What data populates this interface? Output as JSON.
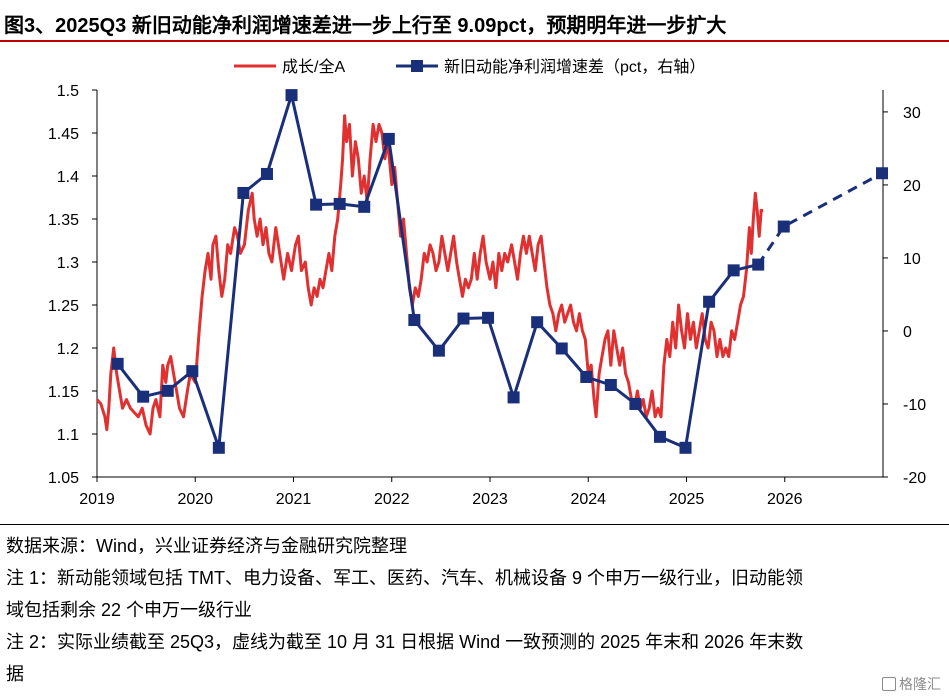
{
  "header": {
    "title": "图3、2025Q3 新旧动能净利润增速差进一步上行至 9.09pct，预期明年进一步扩大",
    "rule_color": "#c00000"
  },
  "chart_data": {
    "type": "line",
    "legend_position": "top-center",
    "grid": false,
    "x_ticks": [
      "2019",
      "2020",
      "2021",
      "2022",
      "2023",
      "2024",
      "2025",
      "2026"
    ],
    "left_axis": {
      "ylim": [
        1.05,
        1.5
      ],
      "ticks": [
        "1.5",
        "1.45",
        "1.4",
        "1.35",
        "1.3",
        "1.25",
        "1.2",
        "1.15",
        "1.1",
        "1.05"
      ]
    },
    "right_axis": {
      "ylim": [
        -20,
        33
      ],
      "ticks": [
        "30",
        "20",
        "10",
        "0",
        "-10",
        "-20"
      ]
    },
    "series": [
      {
        "name": "成长/全A",
        "axis": "left",
        "color": "#e03030",
        "style": "line",
        "points": [
          [
            2019.0,
            1.14
          ],
          [
            2019.04,
            1.135
          ],
          [
            2019.08,
            1.12
          ],
          [
            2019.1,
            1.105
          ],
          [
            2019.12,
            1.13
          ],
          [
            2019.14,
            1.17
          ],
          [
            2019.17,
            1.2
          ],
          [
            2019.2,
            1.17
          ],
          [
            2019.23,
            1.15
          ],
          [
            2019.26,
            1.13
          ],
          [
            2019.3,
            1.14
          ],
          [
            2019.34,
            1.13
          ],
          [
            2019.38,
            1.125
          ],
          [
            2019.42,
            1.12
          ],
          [
            2019.46,
            1.13
          ],
          [
            2019.5,
            1.11
          ],
          [
            2019.54,
            1.1
          ],
          [
            2019.57,
            1.13
          ],
          [
            2019.6,
            1.14
          ],
          [
            2019.64,
            1.12
          ],
          [
            2019.67,
            1.18
          ],
          [
            2019.7,
            1.16
          ],
          [
            2019.72,
            1.18
          ],
          [
            2019.75,
            1.19
          ],
          [
            2019.78,
            1.17
          ],
          [
            2019.81,
            1.15
          ],
          [
            2019.84,
            1.13
          ],
          [
            2019.88,
            1.12
          ],
          [
            2019.92,
            1.15
          ],
          [
            2019.95,
            1.17
          ],
          [
            2020.0,
            1.16
          ],
          [
            2020.04,
            1.22
          ],
          [
            2020.07,
            1.26
          ],
          [
            2020.1,
            1.29
          ],
          [
            2020.13,
            1.31
          ],
          [
            2020.16,
            1.28
          ],
          [
            2020.18,
            1.32
          ],
          [
            2020.21,
            1.33
          ],
          [
            2020.24,
            1.29
          ],
          [
            2020.27,
            1.26
          ],
          [
            2020.3,
            1.28
          ],
          [
            2020.33,
            1.32
          ],
          [
            2020.36,
            1.31
          ],
          [
            2020.4,
            1.34
          ],
          [
            2020.43,
            1.33
          ],
          [
            2020.46,
            1.31
          ],
          [
            2020.5,
            1.32
          ],
          [
            2020.54,
            1.36
          ],
          [
            2020.58,
            1.38
          ],
          [
            2020.6,
            1.35
          ],
          [
            2020.63,
            1.33
          ],
          [
            2020.66,
            1.35
          ],
          [
            2020.69,
            1.32
          ],
          [
            2020.72,
            1.34
          ],
          [
            2020.75,
            1.31
          ],
          [
            2020.78,
            1.3
          ],
          [
            2020.82,
            1.34
          ],
          [
            2020.86,
            1.31
          ],
          [
            2020.9,
            1.28
          ],
          [
            2020.94,
            1.31
          ],
          [
            2020.98,
            1.29
          ],
          [
            2021.02,
            1.32
          ],
          [
            2021.05,
            1.33
          ],
          [
            2021.08,
            1.29
          ],
          [
            2021.12,
            1.3
          ],
          [
            2021.15,
            1.27
          ],
          [
            2021.18,
            1.25
          ],
          [
            2021.21,
            1.27
          ],
          [
            2021.24,
            1.26
          ],
          [
            2021.27,
            1.28
          ],
          [
            2021.3,
            1.27
          ],
          [
            2021.33,
            1.29
          ],
          [
            2021.36,
            1.31
          ],
          [
            2021.39,
            1.29
          ],
          [
            2021.42,
            1.33
          ],
          [
            2021.45,
            1.35
          ],
          [
            2021.48,
            1.39
          ],
          [
            2021.5,
            1.42
          ],
          [
            2021.52,
            1.47
          ],
          [
            2021.54,
            1.44
          ],
          [
            2021.57,
            1.46
          ],
          [
            2021.6,
            1.4
          ],
          [
            2021.63,
            1.44
          ],
          [
            2021.66,
            1.42
          ],
          [
            2021.69,
            1.38
          ],
          [
            2021.72,
            1.4
          ],
          [
            2021.75,
            1.37
          ],
          [
            2021.78,
            1.42
          ],
          [
            2021.81,
            1.46
          ],
          [
            2021.84,
            1.44
          ],
          [
            2021.87,
            1.46
          ],
          [
            2021.9,
            1.45
          ],
          [
            2021.93,
            1.42
          ],
          [
            2021.96,
            1.44
          ],
          [
            2022.0,
            1.39
          ],
          [
            2022.03,
            1.41
          ],
          [
            2022.06,
            1.37
          ],
          [
            2022.09,
            1.33
          ],
          [
            2022.12,
            1.35
          ],
          [
            2022.15,
            1.31
          ],
          [
            2022.18,
            1.27
          ],
          [
            2022.21,
            1.25
          ],
          [
            2022.24,
            1.27
          ],
          [
            2022.27,
            1.26
          ],
          [
            2022.3,
            1.28
          ],
          [
            2022.33,
            1.31
          ],
          [
            2022.36,
            1.3
          ],
          [
            2022.39,
            1.32
          ],
          [
            2022.42,
            1.31
          ],
          [
            2022.45,
            1.29
          ],
          [
            2022.48,
            1.3
          ],
          [
            2022.51,
            1.33
          ],
          [
            2022.54,
            1.31
          ],
          [
            2022.57,
            1.29
          ],
          [
            2022.6,
            1.31
          ],
          [
            2022.63,
            1.33
          ],
          [
            2022.66,
            1.3
          ],
          [
            2022.69,
            1.28
          ],
          [
            2022.72,
            1.26
          ],
          [
            2022.75,
            1.28
          ],
          [
            2022.78,
            1.27
          ],
          [
            2022.81,
            1.28
          ],
          [
            2022.84,
            1.31
          ],
          [
            2022.87,
            1.28
          ],
          [
            2022.9,
            1.31
          ],
          [
            2022.93,
            1.33
          ],
          [
            2022.96,
            1.3
          ],
          [
            2023.0,
            1.28
          ],
          [
            2023.03,
            1.3
          ],
          [
            2023.06,
            1.27
          ],
          [
            2023.09,
            1.31
          ],
          [
            2023.12,
            1.29
          ],
          [
            2023.15,
            1.31
          ],
          [
            2023.18,
            1.3
          ],
          [
            2023.22,
            1.32
          ],
          [
            2023.25,
            1.3
          ],
          [
            2023.28,
            1.28
          ],
          [
            2023.31,
            1.31
          ],
          [
            2023.34,
            1.33
          ],
          [
            2023.37,
            1.31
          ],
          [
            2023.4,
            1.33
          ],
          [
            2023.43,
            1.31
          ],
          [
            2023.46,
            1.29
          ],
          [
            2023.49,
            1.32
          ],
          [
            2023.52,
            1.33
          ],
          [
            2023.55,
            1.3
          ],
          [
            2023.58,
            1.27
          ],
          [
            2023.61,
            1.25
          ],
          [
            2023.64,
            1.24
          ],
          [
            2023.67,
            1.22
          ],
          [
            2023.7,
            1.24
          ],
          [
            2023.73,
            1.25
          ],
          [
            2023.76,
            1.23
          ],
          [
            2023.79,
            1.24
          ],
          [
            2023.82,
            1.25
          ],
          [
            2023.85,
            1.23
          ],
          [
            2023.88,
            1.22
          ],
          [
            2023.91,
            1.24
          ],
          [
            2023.94,
            1.22
          ],
          [
            2023.97,
            1.21
          ],
          [
            2024.0,
            1.17
          ],
          [
            2024.03,
            1.18
          ],
          [
            2024.06,
            1.14
          ],
          [
            2024.08,
            1.12
          ],
          [
            2024.11,
            1.17
          ],
          [
            2024.14,
            1.19
          ],
          [
            2024.17,
            1.21
          ],
          [
            2024.2,
            1.22
          ],
          [
            2024.23,
            1.18
          ],
          [
            2024.26,
            1.22
          ],
          [
            2024.29,
            1.2
          ],
          [
            2024.32,
            1.18
          ],
          [
            2024.35,
            1.2
          ],
          [
            2024.38,
            1.17
          ],
          [
            2024.41,
            1.16
          ],
          [
            2024.44,
            1.14
          ],
          [
            2024.47,
            1.13
          ],
          [
            2024.5,
            1.15
          ],
          [
            2024.53,
            1.13
          ],
          [
            2024.56,
            1.14
          ],
          [
            2024.59,
            1.12
          ],
          [
            2024.62,
            1.13
          ],
          [
            2024.65,
            1.15
          ],
          [
            2024.68,
            1.12
          ],
          [
            2024.71,
            1.13
          ],
          [
            2024.74,
            1.12
          ],
          [
            2024.77,
            1.18
          ],
          [
            2024.8,
            1.21
          ],
          [
            2024.83,
            1.19
          ],
          [
            2024.86,
            1.23
          ],
          [
            2024.89,
            1.2
          ],
          [
            2024.92,
            1.25
          ],
          [
            2024.95,
            1.22
          ],
          [
            2024.98,
            1.2
          ],
          [
            2025.01,
            1.24
          ],
          [
            2025.04,
            1.21
          ],
          [
            2025.07,
            1.23
          ],
          [
            2025.1,
            1.2
          ],
          [
            2025.13,
            1.22
          ],
          [
            2025.16,
            1.24
          ],
          [
            2025.19,
            1.21
          ],
          [
            2025.22,
            1.2
          ],
          [
            2025.25,
            1.23
          ],
          [
            2025.28,
            1.22
          ],
          [
            2025.31,
            1.19
          ],
          [
            2025.34,
            1.21
          ],
          [
            2025.37,
            1.19
          ],
          [
            2025.4,
            1.2
          ],
          [
            2025.43,
            1.19
          ],
          [
            2025.46,
            1.22
          ],
          [
            2025.49,
            1.21
          ],
          [
            2025.52,
            1.23
          ],
          [
            2025.55,
            1.25
          ],
          [
            2025.58,
            1.26
          ],
          [
            2025.61,
            1.29
          ],
          [
            2025.64,
            1.34
          ],
          [
            2025.66,
            1.31
          ],
          [
            2025.68,
            1.35
          ],
          [
            2025.7,
            1.38
          ],
          [
            2025.72,
            1.36
          ],
          [
            2025.74,
            1.33
          ],
          [
            2025.76,
            1.36
          ],
          [
            2025.78,
            1.36
          ]
        ]
      },
      {
        "name": "新旧动能净利润增速差（pct，右轴）",
        "axis": "right",
        "color": "#1a2f7a",
        "style": "line-marker",
        "points": [
          [
            2019.21,
            -4.5
          ],
          [
            2019.47,
            -9.0
          ],
          [
            2019.72,
            -8.2
          ],
          [
            2019.97,
            -5.5
          ],
          [
            2020.24,
            -16.0
          ],
          [
            2020.49,
            18.9
          ],
          [
            2020.73,
            21.5
          ],
          [
            2020.98,
            32.3
          ],
          [
            2021.23,
            17.3
          ],
          [
            2021.47,
            17.4
          ],
          [
            2021.72,
            17.0
          ],
          [
            2021.97,
            26.3
          ],
          [
            2022.23,
            1.5
          ],
          [
            2022.48,
            -2.7
          ],
          [
            2022.73,
            1.7
          ],
          [
            2022.98,
            1.8
          ],
          [
            2023.24,
            -9.1
          ],
          [
            2023.48,
            1.2
          ],
          [
            2023.73,
            -2.4
          ],
          [
            2023.98,
            -6.3
          ],
          [
            2024.23,
            -7.4
          ],
          [
            2024.48,
            -10.0
          ],
          [
            2024.73,
            -14.5
          ],
          [
            2024.99,
            -16.0
          ],
          [
            2025.23,
            4.0
          ],
          [
            2025.48,
            8.3
          ],
          [
            2025.73,
            9.09
          ]
        ],
        "forecast_points": [
          [
            2025.73,
            9.09
          ],
          [
            2025.99,
            14.3
          ],
          [
            2026.99,
            21.6
          ]
        ]
      }
    ]
  },
  "footer": {
    "source": "数据来源：Wind，兴业证券经济与金融研究院整理",
    "note1_line1": "注 1：新动能领域包括 TMT、电力设备、军工、医药、汽车、机械设备 9 个申万一级行业，旧动能领",
    "note1_line2": "域包括剩余 22 个申万一级行业",
    "note2_line1": "注 2：实际业绩截至 25Q3，虚线为截至 10 月 31 日根据 Wind 一致预测的 2025 年末和 2026 年末数",
    "note2_line2": "据",
    "watermark": "格隆汇"
  }
}
